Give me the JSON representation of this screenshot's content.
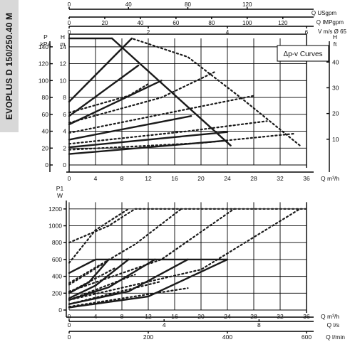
{
  "sidebar": {
    "model_label": "EVOPLUS D 150/250.40 M"
  },
  "chart_data": [
    {
      "type": "line",
      "name": "head-vs-flow",
      "x_axis": {
        "label": "Q m³/h",
        "range": [
          0,
          36
        ],
        "ticks": [
          0,
          4,
          8,
          12,
          16,
          20,
          24,
          28,
          32,
          36
        ]
      },
      "y_axis_left": {
        "label": "P kPa",
        "range": [
          0,
          150
        ],
        "ticks": [
          0,
          20,
          40,
          60,
          80,
          100,
          120,
          140
        ]
      },
      "y_axis_left_head": {
        "label": "H m",
        "range": [
          0,
          15
        ],
        "ticks": [
          0,
          2,
          4,
          6,
          8,
          10,
          12,
          14
        ]
      },
      "y_axis_right": {
        "label": "H ft",
        "range": [
          0,
          49.2
        ],
        "ticks": [
          10,
          20,
          30,
          40
        ]
      },
      "top_axes": [
        {
          "label": "Q USgpm",
          "range": [
            0,
            160
          ],
          "ticks": [
            0,
            40,
            80,
            120
          ]
        },
        {
          "label": "Q IMPgpm",
          "range": [
            0,
            133.3
          ],
          "ticks": [
            0,
            20,
            40,
            60,
            80,
            100,
            120
          ]
        },
        {
          "label": "V m/s Ø 65",
          "range": [
            0,
            3
          ],
          "ticks": [
            0,
            2,
            4,
            6
          ]
        }
      ],
      "annotation": "Δp-v Curves",
      "solid_series": [
        {
          "x": [
            0,
            6.5
          ],
          "y": [
            15,
            15
          ]
        },
        {
          "x": [
            6.5,
            24.5
          ],
          "y": [
            15,
            2.3
          ]
        },
        {
          "x": [
            0,
            9.5
          ],
          "y": [
            7.5,
            15
          ]
        },
        {
          "x": [
            0,
            10.5
          ],
          "y": [
            5.8,
            11.8
          ]
        },
        {
          "x": [
            0,
            14
          ],
          "y": [
            4.8,
            10
          ]
        },
        {
          "x": [
            0,
            18.5
          ],
          "y": [
            3,
            5.8
          ]
        },
        {
          "x": [
            0,
            24
          ],
          "y": [
            2.1,
            3.9
          ]
        },
        {
          "x": [
            0,
            24
          ],
          "y": [
            1.3,
            2.9
          ]
        }
      ],
      "dotted_series": [
        {
          "x": [
            0,
            9.5,
            18,
            26,
            35
          ],
          "y": [
            7.5,
            15,
            12.8,
            8,
            2.3
          ]
        },
        {
          "x": [
            0,
            9,
            12
          ],
          "y": [
            6.2,
            8.2,
            9.6
          ]
        },
        {
          "x": [
            0,
            14,
            22
          ],
          "y": [
            5,
            8,
            11
          ]
        },
        {
          "x": [
            0,
            14,
            28
          ],
          "y": [
            3.8,
            6,
            8.2
          ]
        },
        {
          "x": [
            0,
            18,
            30
          ],
          "y": [
            2.5,
            4,
            5.2
          ]
        },
        {
          "x": [
            0,
            20,
            34
          ],
          "y": [
            1.8,
            2.6,
            3.7
          ]
        }
      ]
    },
    {
      "type": "line",
      "name": "power-vs-flow",
      "x_axis": {
        "label": "Q m³/h",
        "range": [
          0,
          36
        ],
        "ticks": [
          0,
          4,
          8,
          12,
          16,
          20,
          24,
          28,
          32,
          36
        ]
      },
      "y_axis_left": {
        "label": "P1 W",
        "range": [
          0,
          1300
        ],
        "ticks": [
          0,
          200,
          400,
          600,
          800,
          1000,
          1200
        ]
      },
      "bottom_axes": [
        {
          "label": "Q l/s",
          "range": [
            0,
            10
          ],
          "ticks": [
            0,
            4,
            8
          ]
        },
        {
          "label": "Q l/min",
          "range": [
            0,
            600
          ],
          "ticks": [
            0,
            200,
            400,
            600
          ]
        }
      ],
      "solid_series": [
        {
          "x": [
            0,
            4,
            6,
            24
          ],
          "y": [
            440,
            600,
            600,
            600
          ]
        },
        {
          "x": [
            0,
            3,
            6
          ],
          "y": [
            200,
            330,
            600
          ]
        },
        {
          "x": [
            0,
            4,
            9
          ],
          "y": [
            140,
            290,
            600
          ]
        },
        {
          "x": [
            0,
            6,
            13
          ],
          "y": [
            120,
            270,
            600
          ]
        },
        {
          "x": [
            0,
            9,
            18
          ],
          "y": [
            70,
            220,
            600
          ]
        },
        {
          "x": [
            0,
            12,
            24
          ],
          "y": [
            30,
            160,
            600
          ]
        }
      ],
      "dotted_series": [
        {
          "x": [
            0,
            6,
            10,
            36
          ],
          "y": [
            800,
            1000,
            1200,
            1200
          ]
        },
        {
          "x": [
            0,
            4,
            9
          ],
          "y": [
            560,
            950,
            1200
          ]
        },
        {
          "x": [
            0,
            10,
            17
          ],
          "y": [
            320,
            780,
            1200
          ]
        },
        {
          "x": [
            0,
            14,
            25
          ],
          "y": [
            220,
            600,
            1200
          ]
        },
        {
          "x": [
            0,
            20,
            35
          ],
          "y": [
            120,
            480,
            1200
          ]
        },
        {
          "x": [
            0,
            5
          ],
          "y": [
            300,
            540
          ]
        },
        {
          "x": [
            0,
            7
          ],
          "y": [
            210,
            500
          ]
        },
        {
          "x": [
            0,
            10
          ],
          "y": [
            120,
            420
          ]
        },
        {
          "x": [
            0,
            14
          ],
          "y": [
            70,
            340
          ]
        },
        {
          "x": [
            0,
            18
          ],
          "y": [
            40,
            260
          ]
        }
      ]
    }
  ]
}
